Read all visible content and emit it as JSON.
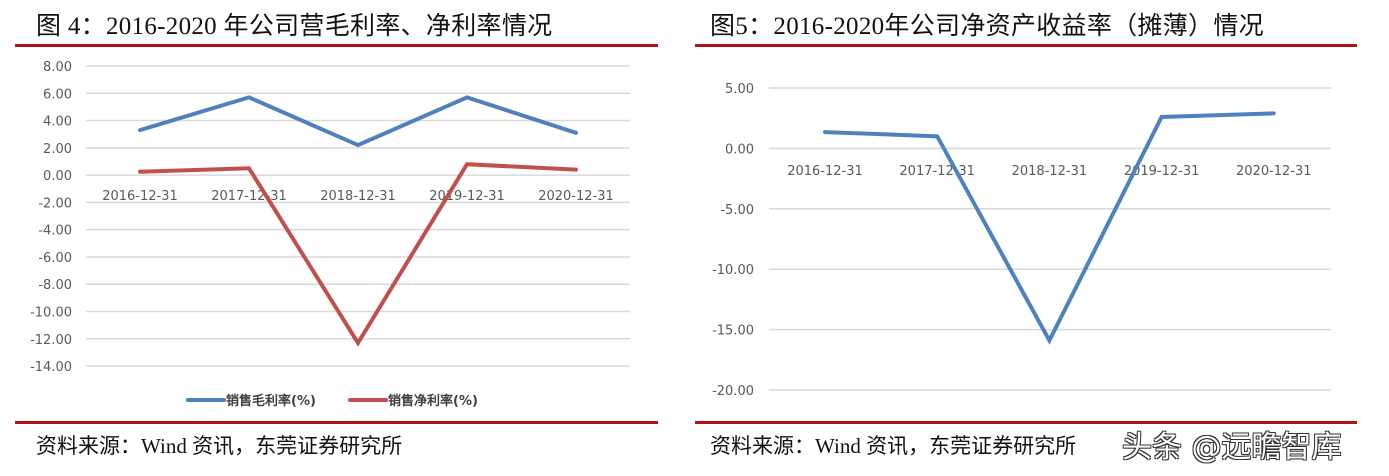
{
  "left": {
    "title": "图 4：2016-2020 年公司营毛利率、净利率情况",
    "source": "资料来源：Wind 资讯，东莞证券研究所"
  },
  "right": {
    "title": "图5：2016-2020年公司净资产收益率（摊薄）情况",
    "source": "资料来源：Wind 资讯，东莞证券研究所"
  },
  "watermark": "头条 @远瞻智库",
  "colors": {
    "blue": "#4f81bd",
    "red": "#c0504d",
    "rule": "#b01116",
    "grid": "#d9d9d9",
    "axis_text": "#595959"
  },
  "chart_data": [
    {
      "type": "line",
      "title": "图 4：2016-2020 年公司营毛利率、净利率情况",
      "categories": [
        "2016-12-31",
        "2017-12-31",
        "2018-12-31",
        "2019-12-31",
        "2020-12-31"
      ],
      "series": [
        {
          "name": "销售毛利率(%)",
          "color": "#4f81bd",
          "values": [
            3.3,
            5.7,
            2.2,
            5.7,
            3.1
          ]
        },
        {
          "name": "销售净利率(%)",
          "color": "#c0504d",
          "values": [
            0.25,
            0.5,
            -12.3,
            0.8,
            0.4
          ]
        }
      ],
      "yticks": [
        "8.00",
        "6.00",
        "4.00",
        "2.00",
        "0.00",
        "-2.00",
        "-4.00",
        "-6.00",
        "-8.00",
        "-10.00",
        "-12.00",
        "-14.00"
      ],
      "ylim": [
        -14,
        8
      ],
      "xlabel": "",
      "ylabel": "",
      "grid": true,
      "legend_position": "bottom"
    },
    {
      "type": "line",
      "title": "图5：2016-2020年公司净资产收益率（摊薄）情况",
      "categories": [
        "2016-12-31",
        "2017-12-31",
        "2018-12-31",
        "2019-12-31",
        "2020-12-31"
      ],
      "series": [
        {
          "name": "净资产收益率(摊薄)",
          "color": "#4f81bd",
          "values": [
            1.35,
            1.0,
            -15.9,
            2.6,
            2.9
          ]
        }
      ],
      "yticks": [
        "5.00",
        "0.00",
        "-5.00",
        "-10.00",
        "-15.00",
        "-20.00"
      ],
      "ylim": [
        -20,
        5
      ],
      "xlabel": "",
      "ylabel": "",
      "grid": true,
      "legend_position": "none"
    }
  ]
}
